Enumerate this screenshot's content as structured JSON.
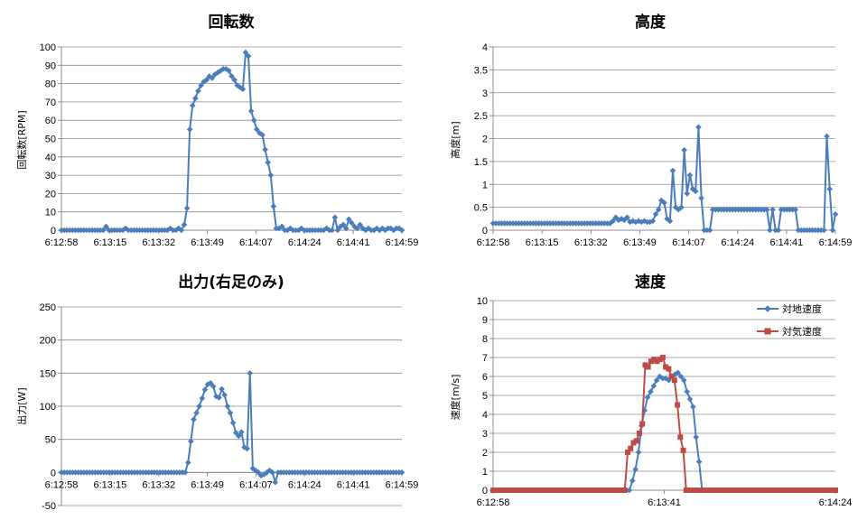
{
  "colors": {
    "blue": "#4a7ebb",
    "red": "#be4b48",
    "grid": "#8c8c8c"
  },
  "chart_data": [
    {
      "type": "line",
      "title": "回転数",
      "ylabel": "回転数[RPM]",
      "ylim": [
        0,
        100
      ],
      "yticks": [
        "0",
        "10",
        "20",
        "30",
        "40",
        "50",
        "60",
        "70",
        "80",
        "90",
        "100"
      ],
      "xticks": [
        "6:12:58",
        "6:13:15",
        "6:13:32",
        "6:13:49",
        "6:14:07",
        "6:14:24",
        "6:14:41",
        "6:14:59"
      ],
      "grid": true,
      "series": [
        {
          "name": "",
          "color": "#4a7ebb",
          "marker": "diamond",
          "values": [
            0,
            0,
            0,
            0,
            0,
            0,
            0,
            0,
            0,
            0,
            0,
            0,
            0,
            0,
            0,
            0,
            2,
            0,
            0,
            0,
            0,
            0,
            0,
            1,
            0,
            0,
            0,
            0,
            0,
            0,
            0,
            0,
            0,
            0,
            0,
            0,
            0,
            0,
            0,
            1,
            0,
            0,
            1,
            0,
            3,
            12,
            55,
            68,
            72,
            76,
            79,
            81,
            82,
            84,
            83,
            85,
            86,
            87,
            88,
            88,
            87,
            84,
            82,
            79,
            78,
            77,
            97,
            95,
            65,
            60,
            55,
            53,
            52,
            44,
            37,
            30,
            13,
            1,
            1,
            2,
            0,
            0,
            1,
            0,
            0,
            0,
            1,
            0,
            0,
            0,
            0,
            0,
            0,
            0,
            0,
            1,
            0,
            0,
            7,
            0,
            2,
            3,
            1,
            6,
            4,
            2,
            1,
            3,
            1,
            0,
            1,
            0,
            0,
            1,
            0,
            1,
            0,
            1,
            1,
            0,
            1,
            1,
            0
          ]
        }
      ]
    },
    {
      "type": "line",
      "title": "高度",
      "ylabel": "高度[m]",
      "ylim": [
        0,
        4
      ],
      "yticks": [
        "0",
        "0.5",
        "1",
        "1.5",
        "2",
        "2.5",
        "3",
        "3.5",
        "4"
      ],
      "xticks": [
        "6:12:58",
        "6:13:15",
        "6:13:32",
        "6:13:49",
        "6:14:07",
        "6:14:24",
        "6:14:41",
        "6:14:59"
      ],
      "grid": true,
      "series": [
        {
          "name": "",
          "color": "#4a7ebb",
          "marker": "diamond",
          "values": [
            0.15,
            0.15,
            0.15,
            0.15,
            0.15,
            0.15,
            0.15,
            0.15,
            0.15,
            0.15,
            0.15,
            0.15,
            0.15,
            0.15,
            0.15,
            0.15,
            0.15,
            0.15,
            0.15,
            0.15,
            0.15,
            0.15,
            0.15,
            0.15,
            0.15,
            0.15,
            0.15,
            0.15,
            0.15,
            0.15,
            0.15,
            0.15,
            0.15,
            0.15,
            0.15,
            0.15,
            0.15,
            0.15,
            0.15,
            0.15,
            0.15,
            0.15,
            0.2,
            0.28,
            0.22,
            0.25,
            0.22,
            0.28,
            0.18,
            0.2,
            0.18,
            0.2,
            0.18,
            0.2,
            0.18,
            0.18,
            0.2,
            0.35,
            0.45,
            0.65,
            0.6,
            0.25,
            0.2,
            1.3,
            0.5,
            0.45,
            0.5,
            1.75,
            0.8,
            1.2,
            0.9,
            0.85,
            2.25,
            0.7,
            0,
            0,
            0,
            0.45,
            0.45,
            0.45,
            0.45,
            0.45,
            0.45,
            0.45,
            0.45,
            0.45,
            0.45,
            0.45,
            0.45,
            0.45,
            0.45,
            0.45,
            0.45,
            0.45,
            0.45,
            0.45,
            0.45,
            0,
            0.45,
            0,
            0,
            0.45,
            0.45,
            0.45,
            0.45,
            0.45,
            0.45,
            0,
            0,
            0,
            0,
            0,
            0,
            0,
            0,
            0,
            0,
            2.05,
            0.9,
            0,
            0.35
          ]
        }
      ]
    },
    {
      "type": "line",
      "title": "出力(右足のみ)",
      "ylabel": "出力[W]",
      "ylim": [
        -50,
        250
      ],
      "yticks": [
        "-50",
        "0",
        "50",
        "100",
        "150",
        "200",
        "250"
      ],
      "xticks": [
        "6:12:58",
        "6:13:15",
        "6:13:32",
        "6:13:49",
        "6:14:07",
        "6:14:24",
        "6:14:41",
        "6:14:59"
      ],
      "grid": true,
      "series": [
        {
          "name": "",
          "color": "#4a7ebb",
          "marker": "diamond",
          "values": [
            0,
            0,
            0,
            0,
            0,
            0,
            0,
            0,
            0,
            0,
            0,
            0,
            0,
            0,
            0,
            0,
            0,
            0,
            0,
            0,
            0,
            0,
            0,
            0,
            0,
            0,
            0,
            0,
            0,
            0,
            0,
            0,
            0,
            0,
            0,
            0,
            0,
            0,
            0,
            0,
            0,
            0,
            0,
            0,
            0,
            15,
            47,
            80,
            90,
            100,
            112,
            125,
            133,
            135,
            130,
            115,
            113,
            126,
            117,
            100,
            90,
            75,
            60,
            55,
            61,
            38,
            36,
            150,
            6,
            3,
            0,
            -5,
            -3,
            0,
            3,
            0,
            -15,
            0,
            0,
            0,
            0,
            0,
            0,
            0,
            0,
            0,
            0,
            0,
            0,
            0,
            0,
            0,
            0,
            0,
            0,
            0,
            0,
            0,
            0,
            0,
            0,
            0,
            0,
            0,
            0,
            0,
            0,
            0,
            0,
            0,
            0,
            0,
            0,
            0,
            0,
            0,
            0,
            0,
            0,
            0,
            0,
            0
          ]
        }
      ]
    },
    {
      "type": "line",
      "title": "速度",
      "ylabel": "速度[m/s]",
      "ylim": [
        0,
        10
      ],
      "yticks": [
        "0",
        "1",
        "2",
        "3",
        "4",
        "5",
        "6",
        "7",
        "8",
        "9",
        "10"
      ],
      "xticks": [
        "6:12:58",
        "6:13:41",
        "6:14:24"
      ],
      "legend": "top-right",
      "grid": true,
      "series": [
        {
          "name": "対地速度",
          "color": "#4a7ebb",
          "marker": "diamond",
          "values": [
            0,
            0,
            0,
            0,
            0,
            0,
            0,
            0,
            0,
            0,
            0,
            0,
            0,
            0,
            0,
            0,
            0,
            0,
            0,
            0,
            0,
            0,
            0,
            0,
            0,
            0,
            0,
            0,
            0,
            0,
            0,
            0,
            0,
            0,
            0,
            0,
            0,
            0,
            0,
            0,
            0,
            0,
            0,
            0,
            0,
            0,
            0.5,
            1.1,
            2.0,
            3.4,
            4.2,
            4.9,
            5.2,
            5.5,
            5.8,
            6.0,
            5.9,
            5.9,
            5.8,
            6.0,
            6.1,
            6.2,
            6.0,
            5.8,
            5.2,
            4.8,
            4.4,
            2.8,
            1.5,
            0,
            0,
            0,
            0,
            0,
            0,
            0,
            0,
            0,
            0,
            0,
            0,
            0,
            0,
            0,
            0,
            0,
            0,
            0,
            0,
            0,
            0,
            0,
            0,
            0,
            0,
            0,
            0,
            0,
            0,
            0,
            0,
            0,
            0,
            0,
            0,
            0,
            0,
            0,
            0,
            0,
            0,
            0,
            0,
            0
          ]
        },
        {
          "name": "対気速度",
          "color": "#be4b48",
          "marker": "square",
          "values": [
            0,
            0,
            0,
            0,
            0,
            0,
            0,
            0,
            0,
            0,
            0,
            0,
            0,
            0,
            0,
            0,
            0,
            0,
            0,
            0,
            0,
            0,
            0,
            0,
            0,
            0,
            0,
            0,
            0,
            0,
            0,
            0,
            0,
            0,
            0,
            0,
            0,
            0,
            0,
            0,
            0,
            0,
            0,
            0,
            0,
            0,
            2.0,
            2.2,
            2.5,
            2.6,
            3.0,
            3.5,
            6.6,
            6.5,
            6.8,
            6.9,
            6.8,
            6.9,
            7.0,
            6.5,
            6.4,
            6.0,
            5.8,
            4.5,
            2.8,
            2.1,
            0.0,
            0,
            0,
            0,
            0,
            0,
            0,
            0,
            0,
            0,
            0,
            0,
            0,
            0,
            0,
            0,
            0,
            0,
            0,
            0,
            0,
            0,
            0,
            0,
            0,
            0,
            0,
            0,
            0,
            0,
            0,
            0,
            0,
            0,
            0,
            0,
            0,
            0,
            0,
            0,
            0,
            0,
            0,
            0,
            0,
            0,
            0,
            0,
            0,
            0,
            0,
            0
          ]
        }
      ]
    }
  ]
}
